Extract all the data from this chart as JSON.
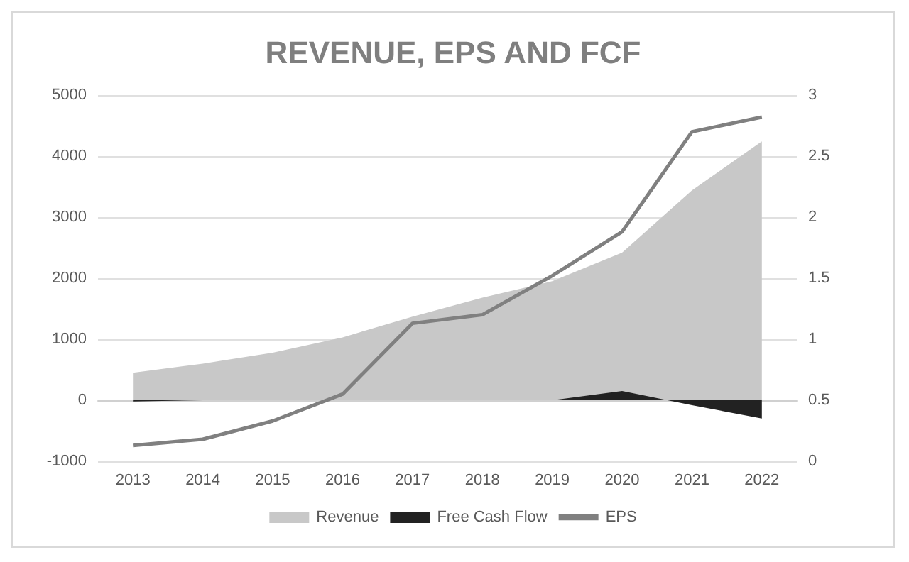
{
  "chart_data": {
    "type": "area",
    "title": "REVENUE, EPS AND FCF",
    "categories": [
      "2013",
      "2014",
      "2015",
      "2016",
      "2017",
      "2018",
      "2019",
      "2020",
      "2021",
      "2022"
    ],
    "series": [
      {
        "name": "Revenue",
        "color": "#c8c8c8",
        "values": [
          450,
          600,
          780,
          1030,
          1370,
          1680,
          1950,
          2420,
          3440,
          4240
        ]
      },
      {
        "name": "Free Cash Flow",
        "color": "#222222",
        "values": [
          -20,
          0,
          0,
          0,
          0,
          0,
          0,
          150,
          -80,
          -300
        ]
      },
      {
        "name": "EPS",
        "type": "line",
        "axis": "y2",
        "color": "#808080",
        "values": [
          0.13,
          0.18,
          0.33,
          0.55,
          1.13,
          1.2,
          1.52,
          1.88,
          2.7,
          2.82
        ]
      }
    ],
    "ylim": [
      -1000,
      5000
    ],
    "yticks": [
      -1000,
      0,
      1000,
      2000,
      3000,
      4000,
      5000
    ],
    "y2lim": [
      0,
      3
    ],
    "y2ticks": [
      0,
      0.5,
      1,
      1.5,
      2,
      2.5,
      3
    ],
    "grid": "y",
    "legend": "bottom",
    "marker": "none"
  }
}
